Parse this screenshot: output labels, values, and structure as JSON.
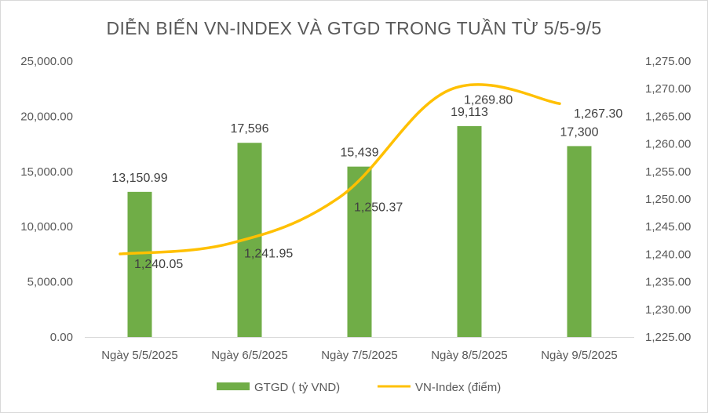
{
  "chart_data": {
    "type": "bar",
    "title": "DIỄN BIẾN VN-INDEX VÀ GTGD TRONG TUẦN TỪ 5/5-9/5",
    "categories": [
      "Ngày 5/5/2025",
      "Ngày 6/5/2025",
      "Ngày 7/5/2025",
      "Ngày 8/5/2025",
      "Ngày 9/5/2025"
    ],
    "series": [
      {
        "name": "GTGD ( tỷ VND)",
        "type": "bar",
        "axis": "left",
        "color": "#70ad47",
        "values": [
          13150.99,
          17596,
          15439,
          19113,
          17300
        ],
        "labels": [
          "13,150.99",
          "17,596",
          "15,439",
          "19,113",
          "17,300"
        ]
      },
      {
        "name": "VN-Index (điểm)",
        "type": "line",
        "axis": "right",
        "color": "#ffc000",
        "values": [
          1240.05,
          1241.95,
          1250.37,
          1269.8,
          1267.3
        ],
        "labels": [
          "1,240.05",
          "1,241.95",
          "1,250.37",
          "1,269.80",
          "1,267.30"
        ]
      }
    ],
    "y_left": {
      "min": 0,
      "max": 25000,
      "ticks": [
        "0.00",
        "5,000.00",
        "10,000.00",
        "15,000.00",
        "20,000.00",
        "25,000.00"
      ]
    },
    "y_right": {
      "min": 1225,
      "max": 1275,
      "ticks": [
        "1,225.00",
        "1,230.00",
        "1,235.00",
        "1,240.00",
        "1,245.00",
        "1,250.00",
        "1,255.00",
        "1,260.00",
        "1,265.00",
        "1,270.00",
        "1,275.00"
      ]
    },
    "grid": false,
    "legend_position": "bottom"
  }
}
